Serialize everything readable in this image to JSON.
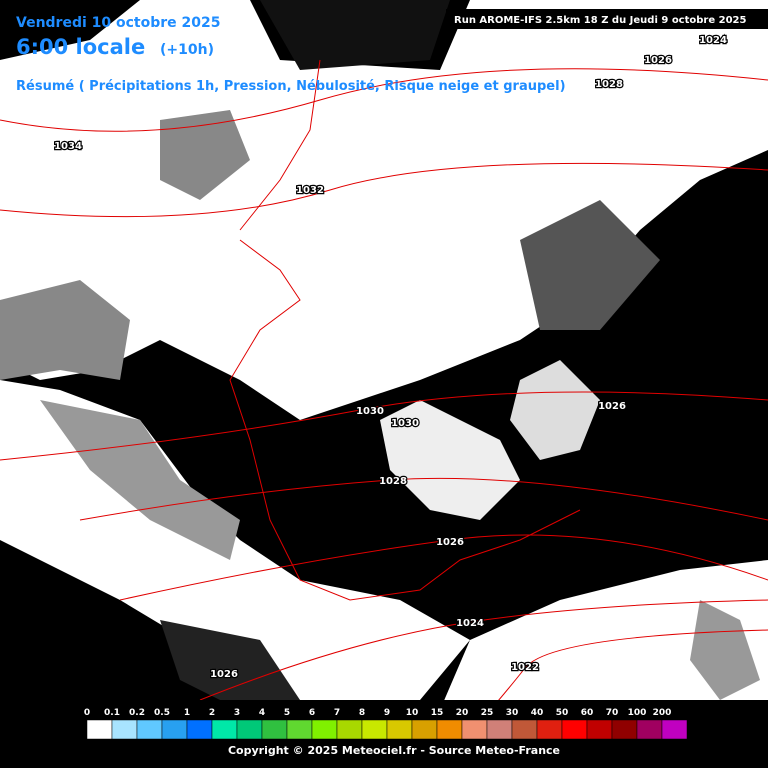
{
  "header": {
    "date": "Vendredi 10 octobre 2025",
    "time": "6:00 locale",
    "offset": "(+10h)",
    "summary": "Résumé ( Précipitations 1h, Pression, Nébulosité, Risque neige et graupel)",
    "run": "Run AROME-IFS 2.5km 18 Z du Jeudi 9 octobre 2025"
  },
  "isobar_labels": [
    "1024",
    "1026",
    "1028",
    "1034",
    "1032",
    "1030",
    "1030",
    "1026",
    "1028",
    "1026",
    "1024",
    "1022",
    "1026"
  ],
  "legend": {
    "labels": [
      "0",
      "0.1",
      "0.2",
      "0.5",
      "1",
      "2",
      "3",
      "4",
      "5",
      "6",
      "7",
      "8",
      "9",
      "10",
      "15",
      "20",
      "25",
      "30",
      "40",
      "50",
      "60",
      "70",
      "100",
      "200"
    ],
    "colors": [
      "#ffffff",
      "#a8e4ff",
      "#60c8ff",
      "#28a0f0",
      "#0070ff",
      "#00e8a8",
      "#00c878",
      "#30c040",
      "#60d830",
      "#80f000",
      "#a8d800",
      "#c8e800",
      "#d8c800",
      "#d8a000",
      "#f08c00",
      "#f09070",
      "#d08078",
      "#c05838",
      "#e02010",
      "#ff0000",
      "#c00000",
      "#900000",
      "#a00060",
      "#c000c0"
    ]
  },
  "footer": {
    "copyright": "Copyright © 2025 Meteociel.fr - Source Meteo-France"
  }
}
